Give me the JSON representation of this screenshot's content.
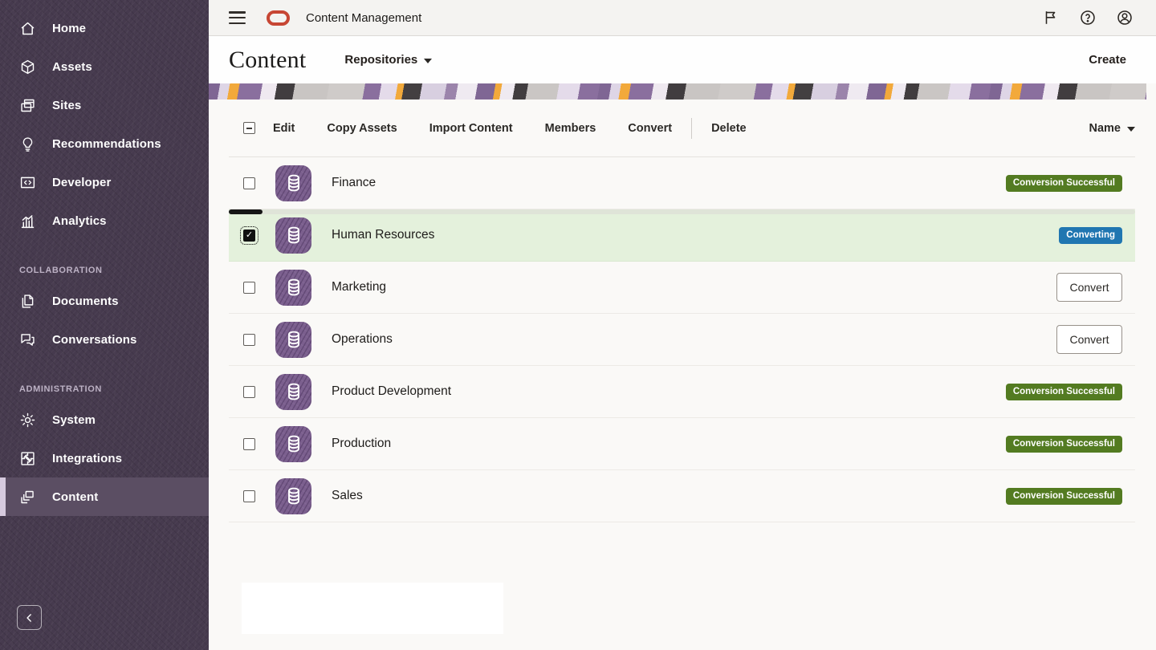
{
  "app": {
    "title": "Content Management"
  },
  "header_icons": [
    {
      "name": "flag-icon"
    },
    {
      "name": "help-icon"
    },
    {
      "name": "account-icon"
    }
  ],
  "page": {
    "title": "Content",
    "scope": "Repositories",
    "create": "Create"
  },
  "toolbar": {
    "select_all_state": "indeterminate",
    "actions": [
      "Edit",
      "Copy Assets",
      "Import Content",
      "Members",
      "Convert"
    ],
    "divided_action": "Delete",
    "sort_label": "Name"
  },
  "sidebar": {
    "sections": [
      {
        "title": "",
        "items": [
          {
            "label": "Home",
            "icon": "home-icon"
          },
          {
            "label": "Assets",
            "icon": "assets-icon"
          },
          {
            "label": "Sites",
            "icon": "sites-icon"
          },
          {
            "label": "Recommendations",
            "icon": "recommendations-icon"
          },
          {
            "label": "Developer",
            "icon": "developer-icon"
          },
          {
            "label": "Analytics",
            "icon": "analytics-icon"
          }
        ]
      },
      {
        "title": "COLLABORATION",
        "items": [
          {
            "label": "Documents",
            "icon": "documents-icon"
          },
          {
            "label": "Conversations",
            "icon": "conversations-icon"
          }
        ]
      },
      {
        "title": "ADMINISTRATION",
        "items": [
          {
            "label": "System",
            "icon": "system-icon"
          },
          {
            "label": "Integrations",
            "icon": "integrations-icon"
          },
          {
            "label": "Content",
            "icon": "content-icon",
            "selected": true
          }
        ]
      }
    ]
  },
  "repositories": [
    {
      "name": "Finance",
      "checked": false,
      "selected": false,
      "badge": {
        "label": "Conversion Successful",
        "type": "success"
      }
    },
    {
      "name": "Human Resources",
      "checked": true,
      "selected": true,
      "progress": 0.037,
      "badge": {
        "label": "Converting",
        "type": "info"
      }
    },
    {
      "name": "Marketing",
      "checked": false,
      "selected": false,
      "action": "Convert"
    },
    {
      "name": "Operations",
      "checked": false,
      "selected": false,
      "action": "Convert"
    },
    {
      "name": "Product Development",
      "checked": false,
      "selected": false,
      "badge": {
        "label": "Conversion Successful",
        "type": "success"
      }
    },
    {
      "name": "Production",
      "checked": false,
      "selected": false,
      "badge": {
        "label": "Conversion Successful",
        "type": "success"
      }
    },
    {
      "name": "Sales",
      "checked": false,
      "selected": false,
      "badge": {
        "label": "Conversion Successful",
        "type": "success"
      }
    }
  ],
  "colors": {
    "badge_success": "#537b21",
    "badge_info": "#2076b1",
    "selected_row": "#e4f1dc",
    "accent_red": "#c74634",
    "sidebar_bg": "#463a4e"
  }
}
